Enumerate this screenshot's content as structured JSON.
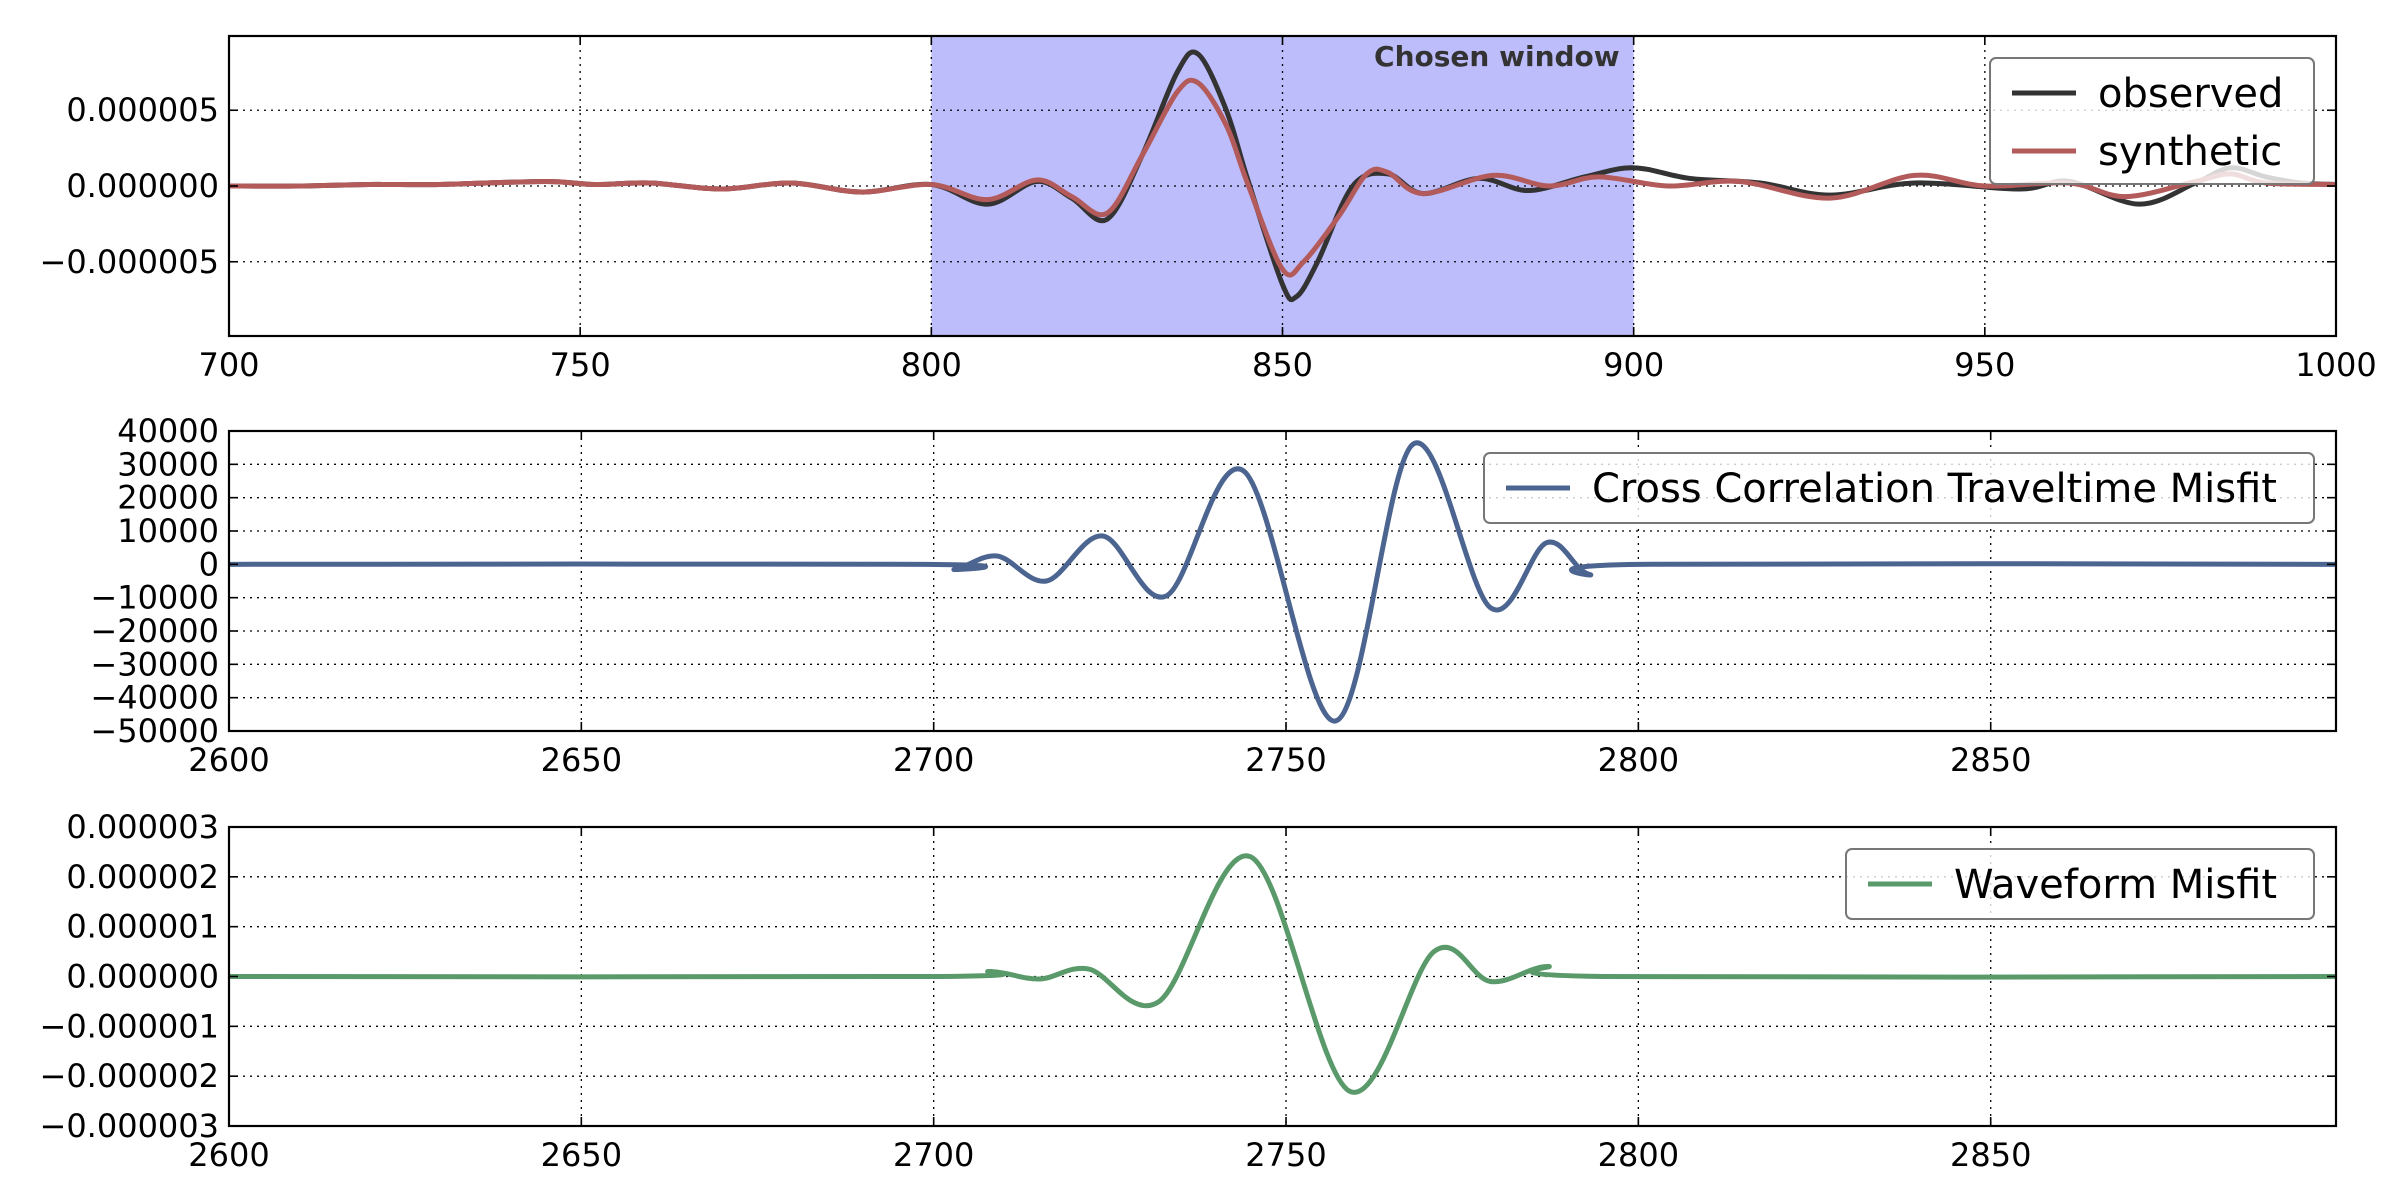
{
  "chart_data": [
    {
      "type": "line",
      "xlim": [
        700,
        1000
      ],
      "ylim": [
        -9.9e-06,
        9.9e-06
      ],
      "xticks": [
        700,
        750,
        800,
        850,
        900,
        950,
        1000
      ],
      "xtick_labels": [
        "700",
        "750",
        "800",
        "850",
        "900",
        "950",
        "1000"
      ],
      "yticks": [
        -5e-06,
        0,
        5e-06
      ],
      "ytick_labels": [
        "−0.000005",
        "0.000000",
        "0.000005"
      ],
      "grid": true,
      "legend_position": "top-right",
      "annotation": {
        "text": "Chosen window",
        "x0": 800,
        "x1": 900
      },
      "series": [
        {
          "name": "observed",
          "color": "#333333",
          "points": [
            [
              700,
              0
            ],
            [
              710,
              0
            ],
            [
              720,
              1e-07
            ],
            [
              730,
              1e-07
            ],
            [
              745,
              3e-07
            ],
            [
              752,
              1e-07
            ],
            [
              760,
              2e-07
            ],
            [
              770,
              -2e-07
            ],
            [
              780,
              2e-07
            ],
            [
              790,
              -4e-07
            ],
            [
              800,
              1e-07
            ],
            [
              808,
              -1.2e-06
            ],
            [
              815,
              3e-07
            ],
            [
              820,
              -8e-07
            ],
            [
              825,
              -2.2e-06
            ],
            [
              830,
              2e-06
            ],
            [
              835,
              7.5e-06
            ],
            [
              838,
              8.7e-06
            ],
            [
              842,
              5e-06
            ],
            [
              845,
              5e-07
            ],
            [
              850,
              -6.5e-06
            ],
            [
              852,
              -7.3e-06
            ],
            [
              855,
              -5e-06
            ],
            [
              860,
              0
            ],
            [
              865,
              8e-07
            ],
            [
              870,
              -5e-07
            ],
            [
              878,
              5e-07
            ],
            [
              885,
              -3e-07
            ],
            [
              893,
              6e-07
            ],
            [
              900,
              1.2e-06
            ],
            [
              908,
              5e-07
            ],
            [
              918,
              2e-07
            ],
            [
              928,
              -6e-07
            ],
            [
              940,
              2e-07
            ],
            [
              955,
              -2e-07
            ],
            [
              962,
              3e-07
            ],
            [
              972,
              -1.2e-06
            ],
            [
              980,
              2e-07
            ],
            [
              985,
              1.2e-06
            ],
            [
              990,
              6e-07
            ],
            [
              995,
              2e-07
            ],
            [
              1000,
              1e-07
            ]
          ]
        },
        {
          "name": "synthetic",
          "color": "#b35a5a",
          "points": [
            [
              700,
              0
            ],
            [
              710,
              0
            ],
            [
              720,
              1e-07
            ],
            [
              730,
              1e-07
            ],
            [
              745,
              3e-07
            ],
            [
              752,
              1e-07
            ],
            [
              760,
              2e-07
            ],
            [
              770,
              -2e-07
            ],
            [
              780,
              2e-07
            ],
            [
              790,
              -4e-07
            ],
            [
              800,
              1e-07
            ],
            [
              808,
              -9e-07
            ],
            [
              815,
              4e-07
            ],
            [
              820,
              -7e-07
            ],
            [
              825,
              -1.8e-06
            ],
            [
              830,
              2e-06
            ],
            [
              835,
              6.2e-06
            ],
            [
              838,
              6.8e-06
            ],
            [
              842,
              4e-06
            ],
            [
              845,
              2e-07
            ],
            [
              850,
              -5.5e-06
            ],
            [
              853,
              -5e-06
            ],
            [
              858,
              -2e-06
            ],
            [
              862,
              8e-07
            ],
            [
              865,
              9e-07
            ],
            [
              870,
              -5e-07
            ],
            [
              880,
              7e-07
            ],
            [
              888,
              0
            ],
            [
              895,
              6e-07
            ],
            [
              905,
              0
            ],
            [
              915,
              3e-07
            ],
            [
              928,
              -8e-07
            ],
            [
              940,
              7e-07
            ],
            [
              950,
              0
            ],
            [
              962,
              2e-07
            ],
            [
              970,
              -7e-07
            ],
            [
              980,
              3e-07
            ],
            [
              985,
              8e-07
            ],
            [
              990,
              2e-07
            ],
            [
              1000,
              1e-07
            ]
          ]
        }
      ]
    },
    {
      "type": "line",
      "xlim": [
        2600,
        2899
      ],
      "ylim": [
        -50000,
        40000
      ],
      "xticks": [
        2600,
        2650,
        2700,
        2750,
        2800,
        2850
      ],
      "xtick_labels": [
        "2600",
        "2650",
        "2700",
        "2750",
        "2800",
        "2850"
      ],
      "yticks": [
        -50000,
        -40000,
        -30000,
        -20000,
        -10000,
        0,
        10000,
        20000,
        30000,
        40000
      ],
      "ytick_labels": [
        "−50000",
        "−40000",
        "−30000",
        "−20000",
        "−10000",
        "0",
        "10000",
        "20000",
        "30000",
        "40000"
      ],
      "grid": true,
      "legend_position": "top-right",
      "series": [
        {
          "name": "Cross Correlation Traveltime Misfit",
          "color": "#4c6590",
          "points": [
            [
              2600,
              0
            ],
            [
              2699,
              0
            ],
            [
              2703,
              -1500
            ],
            [
              2709,
              2500
            ],
            [
              2716,
              -5000
            ],
            [
              2724,
              8500
            ],
            [
              2733,
              -9500
            ],
            [
              2744,
              28000
            ],
            [
              2757,
              -47000
            ],
            [
              2768,
              36000
            ],
            [
              2779,
              -13000
            ],
            [
              2787,
              6500
            ],
            [
              2793,
              -3000
            ],
            [
              2800,
              0
            ],
            [
              2899,
              0
            ]
          ]
        }
      ]
    },
    {
      "type": "line",
      "xlim": [
        2600,
        2899
      ],
      "ylim": [
        -3e-06,
        3e-06
      ],
      "xticks": [
        2600,
        2650,
        2700,
        2750,
        2800,
        2850
      ],
      "xtick_labels": [
        "2600",
        "2650",
        "2700",
        "2750",
        "2800",
        "2850"
      ],
      "yticks": [
        -3e-06,
        -2e-06,
        -1e-06,
        0,
        1e-06,
        2e-06,
        3e-06
      ],
      "ytick_labels": [
        "−0.000003",
        "−0.000002",
        "−0.000001",
        "0.000000",
        "0.000001",
        "0.000002",
        "0.000003"
      ],
      "grid": true,
      "legend_position": "top-right",
      "series": [
        {
          "name": "Waveform Misfit",
          "color": "#5a9a6a",
          "points": [
            [
              2600,
              0
            ],
            [
              2700,
              0
            ],
            [
              2708,
              1e-07
            ],
            [
              2715,
              -5e-08
            ],
            [
              2722,
              1.5e-07
            ],
            [
              2732,
              -5e-07
            ],
            [
              2745,
              2.4e-06
            ],
            [
              2759,
              -2.3e-06
            ],
            [
              2771,
              5e-07
            ],
            [
              2779,
              -1e-07
            ],
            [
              2787,
              2e-07
            ],
            [
              2795,
              0
            ],
            [
              2899,
              0
            ]
          ]
        }
      ]
    }
  ]
}
